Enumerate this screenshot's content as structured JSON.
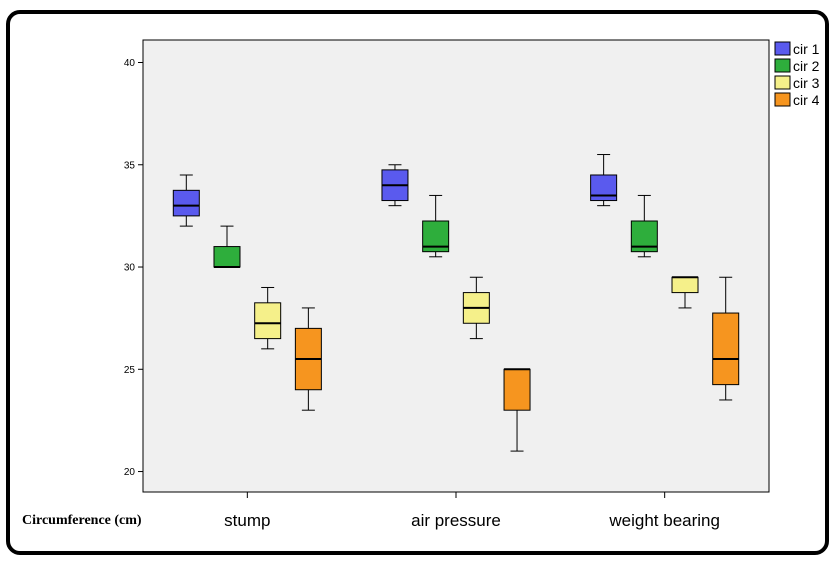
{
  "chart_data": {
    "type": "boxplot",
    "xlabel": "Circumference (cm)",
    "categories": [
      "stump",
      "air pressure",
      "weight bearing"
    ],
    "yticks": [
      20,
      25,
      30,
      35,
      40
    ],
    "ylim": [
      19,
      41.1
    ],
    "grid": false,
    "legend_position": "top-right",
    "series": [
      {
        "name": "cir 1",
        "color": "#5a5aee",
        "boxes": [
          {
            "min": 32.0,
            "q1": 32.5,
            "median": 33.0,
            "q3": 33.75,
            "max": 34.5
          },
          {
            "min": 33.0,
            "q1": 33.25,
            "median": 34.0,
            "q3": 34.75,
            "max": 35.0
          },
          {
            "min": 33.0,
            "q1": 33.25,
            "median": 33.5,
            "q3": 34.5,
            "max": 35.5
          }
        ]
      },
      {
        "name": "cir 2",
        "color": "#2eae3c",
        "boxes": [
          {
            "min": 30.0,
            "q1": 30.0,
            "median": 30.0,
            "q3": 31.0,
            "max": 32.0
          },
          {
            "min": 30.5,
            "q1": 30.75,
            "median": 31.0,
            "q3": 32.25,
            "max": 33.5
          },
          {
            "min": 30.5,
            "q1": 30.75,
            "median": 31.0,
            "q3": 32.25,
            "max": 33.5
          }
        ]
      },
      {
        "name": "cir 3",
        "color": "#f5f08a",
        "boxes": [
          {
            "min": 26.0,
            "q1": 26.5,
            "median": 27.25,
            "q3": 28.25,
            "max": 29.0
          },
          {
            "min": 26.5,
            "q1": 27.25,
            "median": 28.0,
            "q3": 28.75,
            "max": 29.5
          },
          {
            "min": 28.0,
            "q1": 28.75,
            "median": 29.5,
            "q3": 29.5,
            "max": 29.5
          }
        ]
      },
      {
        "name": "cir 4",
        "color": "#f6951f",
        "boxes": [
          {
            "min": 23.0,
            "q1": 24.0,
            "median": 25.5,
            "q3": 27.0,
            "max": 28.0
          },
          {
            "min": 21.0,
            "q1": 23.0,
            "median": 25.0,
            "q3": 25.0,
            "max": 25.0
          },
          {
            "min": 23.5,
            "q1": 24.25,
            "median": 25.5,
            "q3": 27.75,
            "max": 29.5
          }
        ]
      }
    ]
  }
}
